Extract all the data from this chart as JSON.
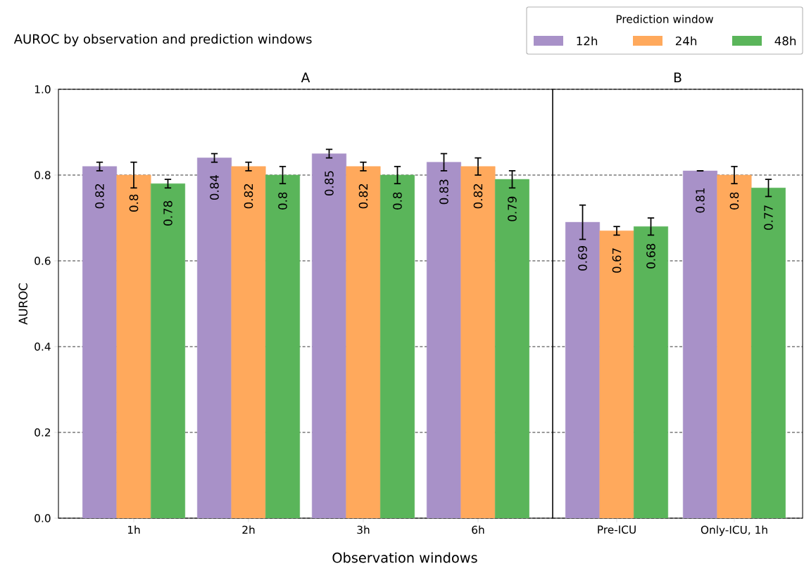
{
  "chart_data": [
    {
      "type": "bar",
      "title": "AUROC by observation and prediction windows",
      "subtitle": "A",
      "xlabel": "Observation windows",
      "ylabel": "AUROC",
      "legend_title": "Prediction window",
      "legend": "top right",
      "grid": "y",
      "data_labels": true,
      "categories": [
        "1h",
        "2h",
        "3h",
        "6h"
      ],
      "ylim": [
        0,
        1
      ],
      "yticks": [
        {
          "value": 0,
          "label": "0.0"
        },
        0.2,
        0.4,
        0.6,
        0.8,
        {
          "value": 1,
          "label": "1.0"
        }
      ],
      "series": [
        {
          "name": "12h",
          "color": "#a891c8",
          "values": [
            0.82,
            0.84,
            0.85,
            0.83
          ],
          "errors": [
            0.01,
            0.01,
            0.01,
            0.02
          ]
        },
        {
          "name": "24h",
          "color": "#ffa95c",
          "values": [
            0.8,
            0.82,
            0.82,
            0.82
          ],
          "errors": [
            0.03,
            0.01,
            0.01,
            0.02
          ]
        },
        {
          "name": "48h",
          "color": "#5ab55a",
          "values": [
            0.78,
            0.8,
            0.8,
            0.79
          ],
          "errors": [
            0.01,
            0.02,
            0.02,
            0.02
          ]
        }
      ]
    },
    {
      "type": "bar",
      "subtitle": "B",
      "grid": "y",
      "data_labels": true,
      "tick_labels": "x",
      "categories": [
        "Pre-ICU",
        "Only-ICU, 1h"
      ],
      "ylim": [
        0,
        1
      ],
      "yticks": [
        0,
        0.2,
        0.4,
        0.6,
        0.8,
        1
      ],
      "series": [
        {
          "color": "#a891c8",
          "values": [
            0.69,
            0.81
          ],
          "errors": [
            0.04,
            0
          ]
        },
        {
          "color": "#ffa95c",
          "values": [
            0.67,
            0.8
          ],
          "errors": [
            0.01,
            0.02
          ]
        },
        {
          "color": "#5ab55a",
          "values": [
            0.68,
            0.77
          ],
          "errors": [
            0.02,
            0.02
          ]
        }
      ]
    }
  ]
}
